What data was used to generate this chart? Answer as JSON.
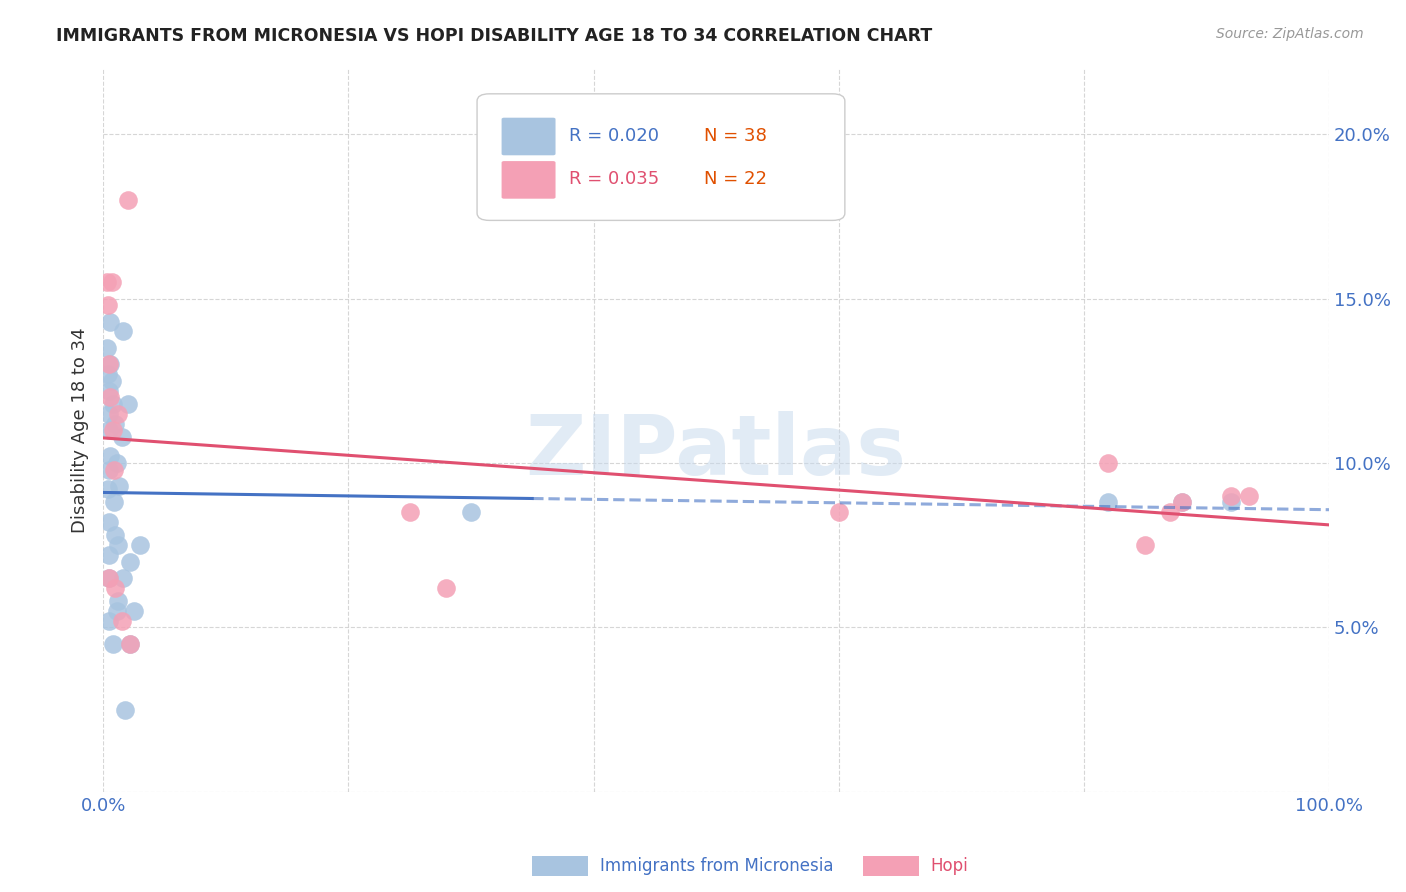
{
  "title": "IMMIGRANTS FROM MICRONESIA VS HOPI DISABILITY AGE 18 TO 34 CORRELATION CHART",
  "source": "Source: ZipAtlas.com",
  "ylabel": "Disability Age 18 to 34",
  "xlim": [
    0.0,
    1.0
  ],
  "ylim": [
    0.0,
    0.22
  ],
  "xticks": [
    0.0,
    0.2,
    0.4,
    0.6,
    0.8,
    1.0
  ],
  "xticklabels": [
    "0.0%",
    "",
    "",
    "",
    "",
    "100.0%"
  ],
  "yticks": [
    0.0,
    0.05,
    0.1,
    0.15,
    0.2
  ],
  "yticklabels": [
    "",
    "5.0%",
    "10.0%",
    "15.0%",
    "20.0%"
  ],
  "legend_blue_r": "R = 0.020",
  "legend_blue_n": "N = 38",
  "legend_pink_r": "R = 0.035",
  "legend_pink_n": "N = 22",
  "blue_color": "#a8c4e0",
  "pink_color": "#f4a0b5",
  "blue_line_color": "#4472c4",
  "pink_line_color": "#e05070",
  "label_color": "#4472c4",
  "watermark": "ZIPatlas",
  "blue_scatter_x": [
    0.003,
    0.004,
    0.004,
    0.005,
    0.005,
    0.005,
    0.005,
    0.005,
    0.005,
    0.005,
    0.005,
    0.006,
    0.006,
    0.006,
    0.007,
    0.008,
    0.008,
    0.009,
    0.01,
    0.01,
    0.011,
    0.011,
    0.012,
    0.012,
    0.013,
    0.015,
    0.016,
    0.016,
    0.018,
    0.02,
    0.022,
    0.022,
    0.025,
    0.03,
    0.3,
    0.82,
    0.88,
    0.92
  ],
  "blue_scatter_y": [
    0.135,
    0.127,
    0.092,
    0.122,
    0.115,
    0.11,
    0.098,
    0.082,
    0.072,
    0.065,
    0.052,
    0.143,
    0.13,
    0.102,
    0.125,
    0.118,
    0.045,
    0.088,
    0.112,
    0.078,
    0.1,
    0.055,
    0.058,
    0.075,
    0.093,
    0.108,
    0.14,
    0.065,
    0.025,
    0.118,
    0.07,
    0.045,
    0.055,
    0.075,
    0.085,
    0.088,
    0.088,
    0.088
  ],
  "pink_scatter_x": [
    0.003,
    0.004,
    0.005,
    0.005,
    0.006,
    0.007,
    0.008,
    0.009,
    0.01,
    0.012,
    0.015,
    0.02,
    0.022,
    0.25,
    0.28,
    0.6,
    0.82,
    0.85,
    0.87,
    0.88,
    0.92,
    0.935
  ],
  "pink_scatter_y": [
    0.155,
    0.148,
    0.13,
    0.065,
    0.12,
    0.155,
    0.11,
    0.098,
    0.062,
    0.115,
    0.052,
    0.18,
    0.045,
    0.085,
    0.062,
    0.085,
    0.1,
    0.075,
    0.085,
    0.088,
    0.09,
    0.09
  ],
  "grid_color": "#cccccc",
  "background_color": "#ffffff"
}
